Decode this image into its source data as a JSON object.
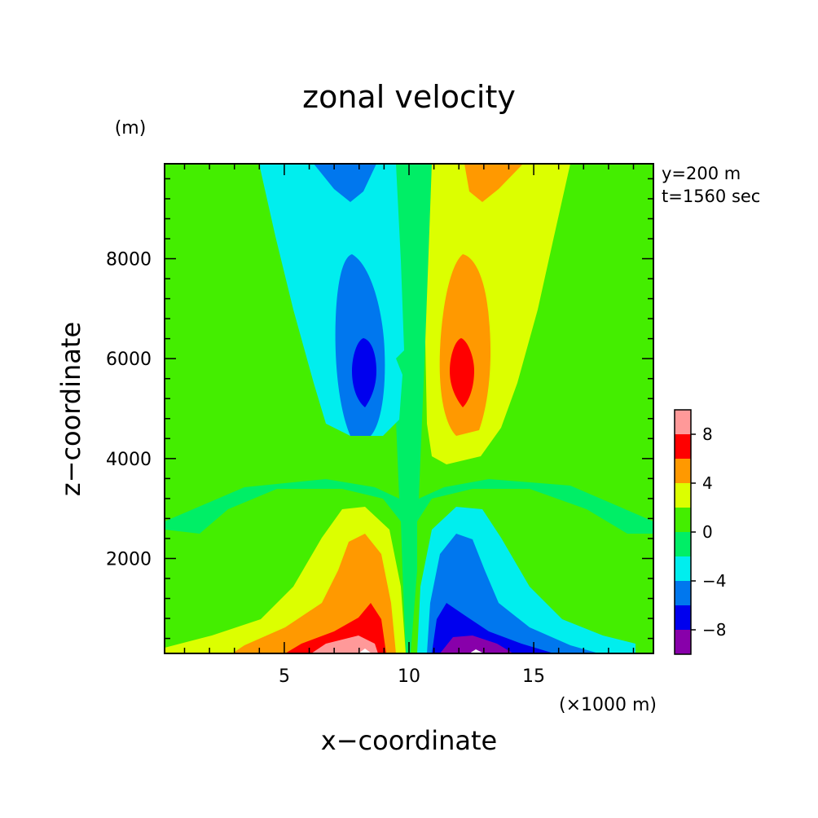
{
  "chart_data": {
    "type": "contour",
    "title": "zonal velocity",
    "xlabel": "x−coordinate",
    "ylabel": "z−coordinate",
    "x_unit": "(×1000 m)",
    "y_unit": "(m)",
    "annotations": [
      "y=200 m",
      "t=1560 sec"
    ],
    "xlim": [
      0.2,
      19.8
    ],
    "ylim": [
      100,
      9900
    ],
    "x_ticks": [
      5,
      10,
      15
    ],
    "x_tick_labels": [
      "5",
      "10",
      "15"
    ],
    "y_ticks": [
      2000,
      4000,
      6000,
      8000
    ],
    "y_tick_labels": [
      "2000",
      "4000",
      "6000",
      "8000"
    ],
    "colorbar": {
      "levels": [
        -10,
        -8,
        -6,
        -4,
        -2,
        0,
        2,
        4,
        6,
        8,
        10
      ],
      "colors": [
        "#8800aa",
        "#0000ee",
        "#0077ee",
        "#00eeee",
        "#00ee66",
        "#44ee00",
        "#dcff00",
        "#ff9900",
        "#ff0000",
        "#ff9999"
      ],
      "tick_labels": [
        "8",
        "4",
        "0",
        "−4",
        "−8"
      ],
      "tick_values": [
        8,
        4,
        0,
        -4,
        -8
      ]
    },
    "features": [
      {
        "name": "lower-positive-lobe",
        "x": 8.0,
        "z": 200,
        "max": 10
      },
      {
        "name": "lower-negative-lobe",
        "x": 12.3,
        "z": 200,
        "min": -10
      },
      {
        "name": "upper-negative-core",
        "x": 8.3,
        "z": 5800,
        "min": -8
      },
      {
        "name": "upper-positive-core",
        "x": 12.0,
        "z": 5800,
        "max": 8
      },
      {
        "name": "top-negative",
        "x": 7.5,
        "z": 9900,
        "min": -6
      },
      {
        "name": "top-positive",
        "x": 12.5,
        "z": 9900,
        "max": 6
      }
    ]
  }
}
